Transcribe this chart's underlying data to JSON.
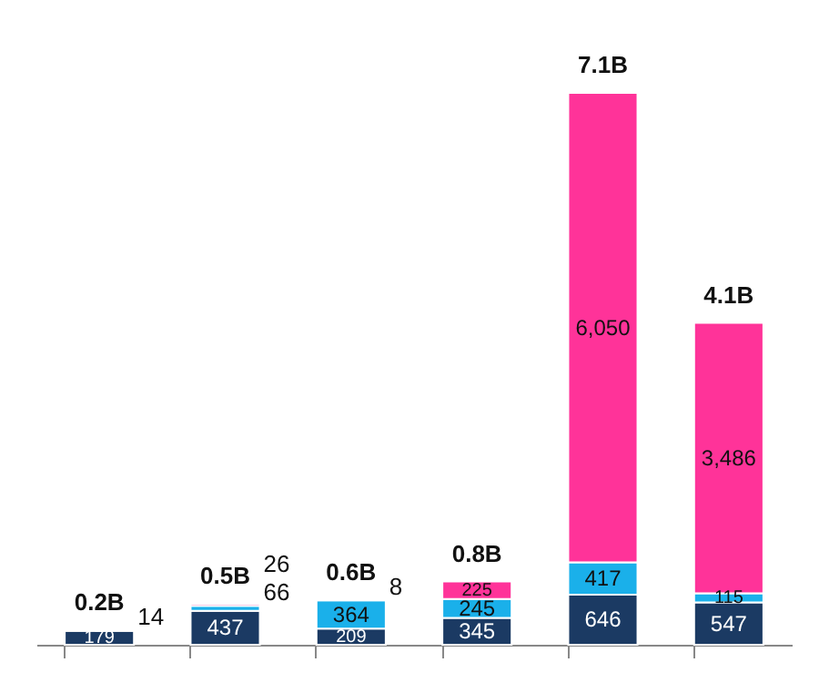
{
  "chart_data": {
    "type": "bar",
    "stacked": true,
    "categories": [
      null,
      null,
      null,
      null,
      null,
      null
    ],
    "series": [
      {
        "color": "#1b3a63",
        "values": [
          179,
          437,
          209,
          345,
          646,
          547
        ],
        "value_labels": [
          "179",
          "437",
          "209",
          "345",
          "646",
          "547"
        ]
      },
      {
        "color": "#1ab0ea",
        "values": [
          14,
          66,
          364,
          245,
          417,
          115
        ],
        "value_labels": [
          "14",
          "66",
          "364",
          "245",
          "417",
          "115"
        ]
      },
      {
        "color": "#ff3399",
        "values": [
          null,
          26,
          8,
          225,
          6050,
          3486
        ],
        "value_labels": [
          null,
          "26",
          "8",
          "225",
          "6,050",
          "3,486"
        ]
      }
    ],
    "totals": [
      "0.2B",
      "0.5B",
      "0.6B",
      "0.8B",
      "7.1B",
      "4.1B"
    ],
    "legend": false,
    "grid": false
  }
}
